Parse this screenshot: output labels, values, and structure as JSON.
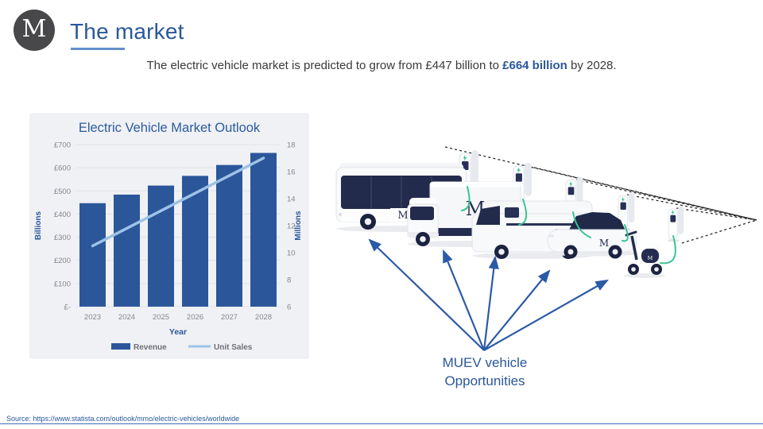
{
  "slide": {
    "logo_letter": "M",
    "title": "The market",
    "subtitle_prefix": "The electric vehicle market is predicted to grow from £447 billion to ",
    "subtitle_highlight": "£664 billion",
    "subtitle_suffix": " by 2028.",
    "annotation_line1": "MUEV vehicle",
    "annotation_line2": "Opportunities",
    "source": "Source: https://www.statista.com/outlook/mmo/electric-vehicles/worldwide"
  },
  "colors": {
    "accent_blue": "#2b579a",
    "bar_blue": "#2b579a",
    "line_light_blue": "#9dc3e8",
    "cable_green": "#38c492",
    "vehicle_navy": "#232b4d",
    "panel_gray": "#f0f1f4"
  },
  "chart_data": {
    "type": "bar",
    "title": "Electric Vehicle Market Outlook",
    "categories": [
      "2023",
      "2024",
      "2025",
      "2026",
      "2027",
      "2028"
    ],
    "series": [
      {
        "name": "Revenue",
        "type": "bar",
        "axis": "left",
        "values": [
          447,
          484,
          523,
          565,
          612,
          664
        ]
      },
      {
        "name": "Unit Sales",
        "type": "line",
        "axis": "right",
        "values": [
          10.5,
          11.8,
          13.1,
          14.4,
          15.7,
          17.0
        ]
      }
    ],
    "xlabel": "Year",
    "left_axis": {
      "label": "Billions",
      "min": 0,
      "max": 700,
      "ticks": [
        "£700",
        "£600",
        "£500",
        "£400",
        "£300",
        "£200",
        "£100",
        "£-"
      ]
    },
    "right_axis": {
      "label": "Millions",
      "min": 6,
      "max": 18,
      "ticks": [
        "18",
        "16",
        "14",
        "12",
        "10",
        "8",
        "6"
      ]
    },
    "grid": "horizontal",
    "legend_position": "bottom"
  },
  "illustration": {
    "vehicles": [
      "bus",
      "truck",
      "van",
      "car",
      "scooter"
    ],
    "vehicle_badge": "M"
  }
}
